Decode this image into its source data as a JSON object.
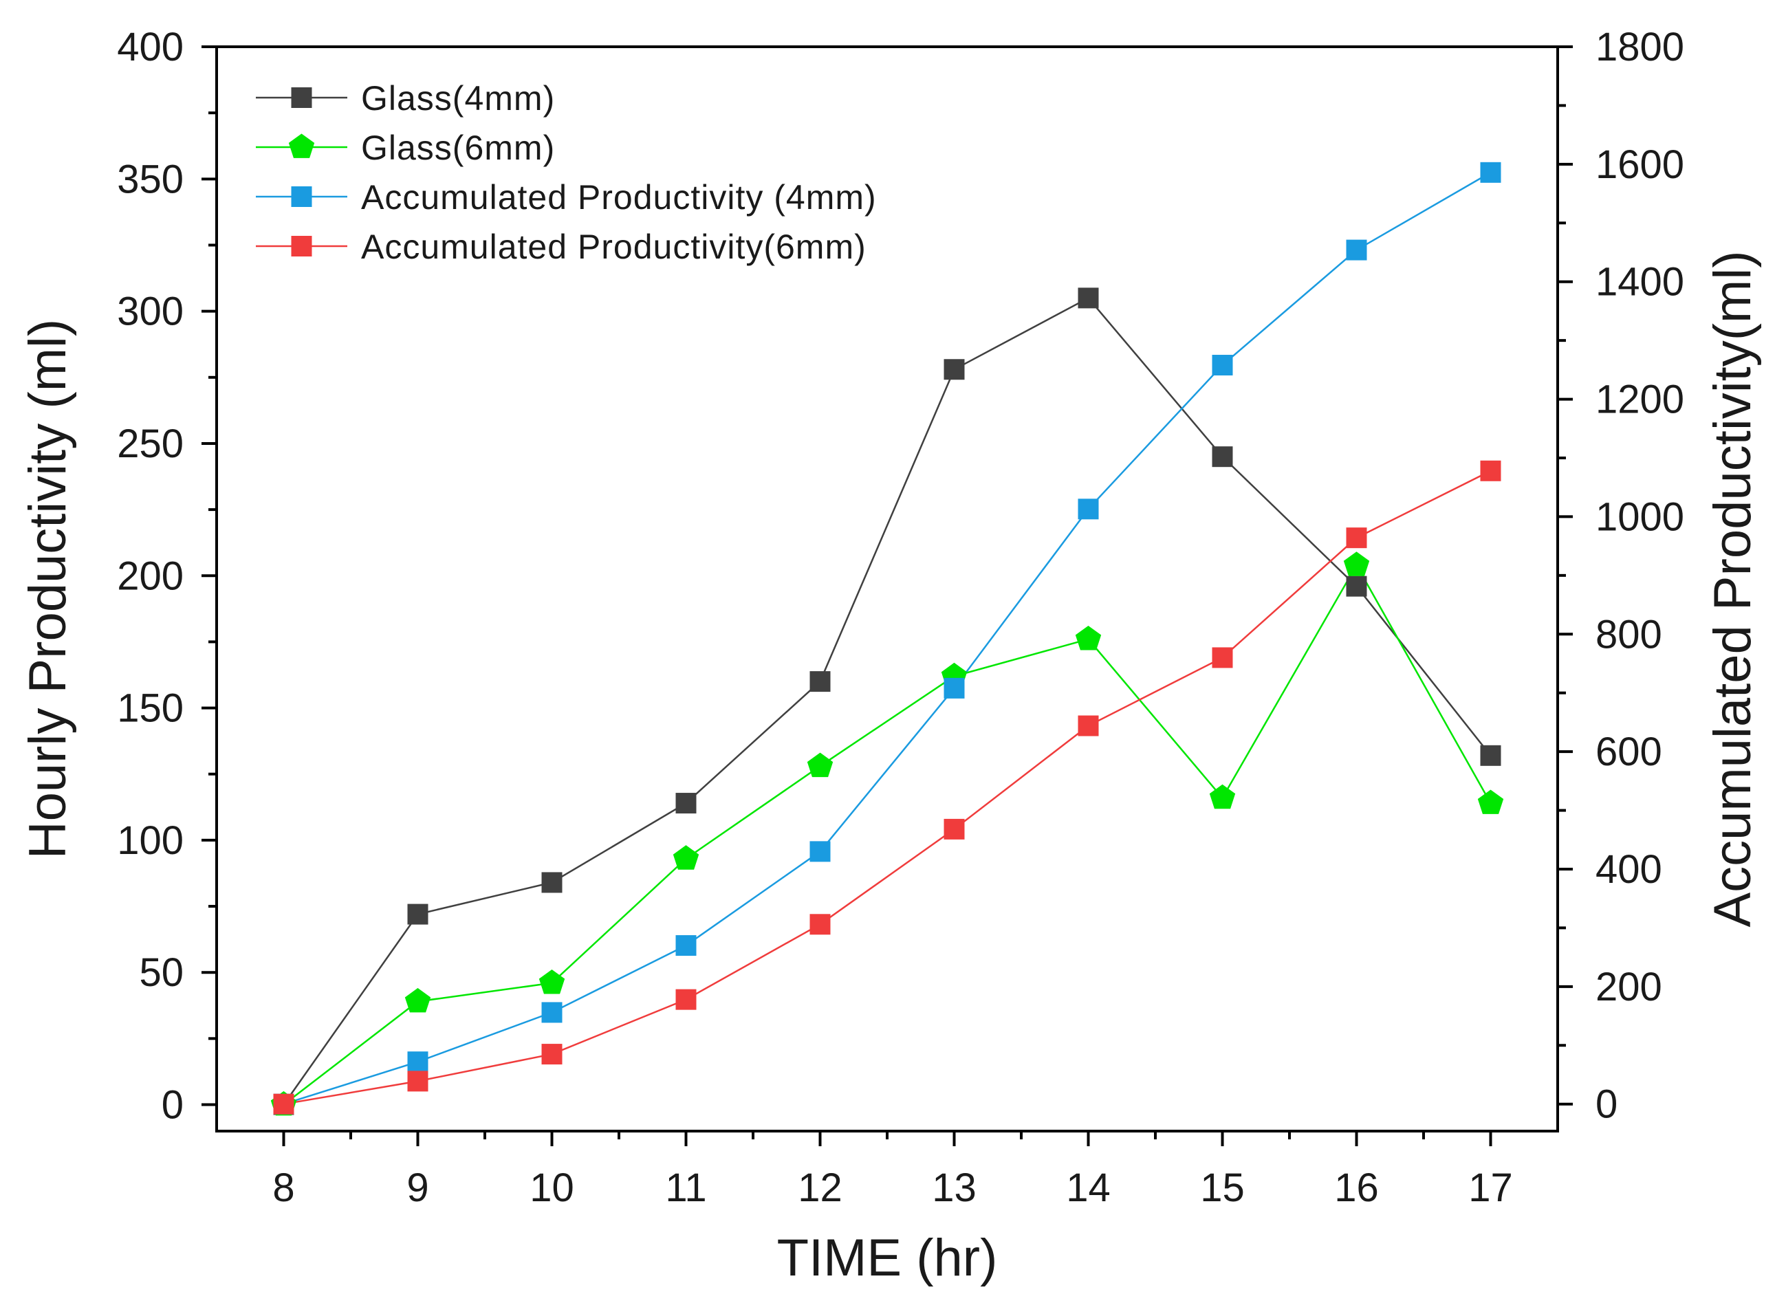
{
  "chart_data": {
    "type": "line",
    "xlabel": "TIME (hr)",
    "ylabel": "Hourly Productivity (ml)",
    "y2label": "Accumulated Productivity(ml)",
    "x": [
      8,
      9,
      10,
      11,
      12,
      13,
      14,
      15,
      16,
      17
    ],
    "xlim": [
      7.5,
      17.5
    ],
    "ylim": [
      -10,
      400
    ],
    "y2lim": [
      -46,
      1800
    ],
    "x_ticks": [
      8,
      9,
      10,
      11,
      12,
      13,
      14,
      15,
      16,
      17
    ],
    "y_ticks": [
      0,
      50,
      100,
      150,
      200,
      250,
      300,
      350,
      400
    ],
    "y2_ticks": [
      0,
      200,
      400,
      600,
      800,
      1000,
      1200,
      1400,
      1600,
      1800
    ],
    "legend_position": "top-left",
    "series": [
      {
        "name": "Glass(4mm)",
        "axis": "left",
        "color": "#404040",
        "marker": "square",
        "values": [
          0,
          72,
          84,
          114,
          160,
          278,
          305,
          245,
          196,
          132
        ]
      },
      {
        "name": "Glass(6mm)",
        "axis": "left",
        "color": "#00e600",
        "marker": "pentagon",
        "values": [
          0,
          39,
          46,
          93,
          128,
          162,
          176,
          116,
          204,
          114
        ]
      },
      {
        "name": "Accumulated Productivity (4mm)",
        "axis": "right",
        "color": "#1a9be0",
        "marker": "square",
        "values": [
          0,
          72,
          156,
          270,
          430,
          708,
          1013,
          1258,
          1454,
          1586
        ]
      },
      {
        "name": "Accumulated Productivity(6mm)",
        "axis": "right",
        "color": "#f03c3c",
        "marker": "square",
        "values": [
          0,
          39,
          85,
          178,
          306,
          468,
          644,
          760,
          964,
          1078
        ]
      }
    ]
  }
}
